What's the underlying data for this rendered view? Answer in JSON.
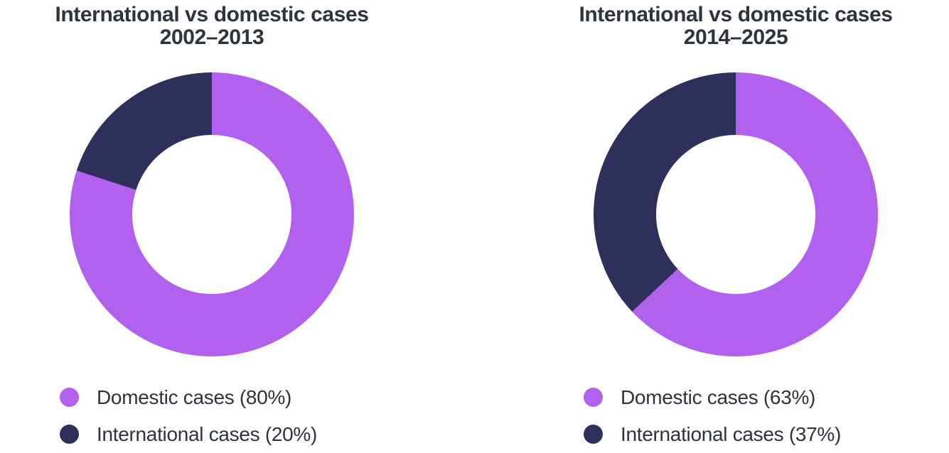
{
  "colors": {
    "domestic": "#B260EE",
    "international": "#2F2F5C",
    "text": "#2E3340",
    "background": "#FFFFFF"
  },
  "charts": [
    {
      "title_line1": "International vs domestic cases",
      "title_line2": "2002–2013",
      "slices": [
        {
          "name": "Domestic cases",
          "percent": 80,
          "label": "Domestic cases (80%)"
        },
        {
          "name": "International cases",
          "percent": 20,
          "label": "International cases (20%)"
        }
      ]
    },
    {
      "title_line1": "International vs domestic cases",
      "title_line2": "2014–2025",
      "slices": [
        {
          "name": "Domestic cases",
          "percent": 63,
          "label": "Domestic cases (63%)"
        },
        {
          "name": "International cases",
          "percent": 37,
          "label": "International cases (37%)"
        }
      ]
    }
  ],
  "chart_data": [
    {
      "type": "pie",
      "subtype": "donut",
      "title": "International vs domestic cases 2002–2013",
      "labels": [
        "Domestic cases",
        "International cases"
      ],
      "values": [
        80,
        20
      ],
      "unit": "%",
      "colors": [
        "#B260EE",
        "#2F2F5C"
      ],
      "hole_ratio": 0.56,
      "start_angle_deg": 0,
      "direction": "clockwise",
      "legend_position": "bottom-left"
    },
    {
      "type": "pie",
      "subtype": "donut",
      "title": "International vs domestic cases 2014–2025",
      "labels": [
        "Domestic cases",
        "International cases"
      ],
      "values": [
        63,
        37
      ],
      "unit": "%",
      "colors": [
        "#B260EE",
        "#2F2F5C"
      ],
      "hole_ratio": 0.56,
      "start_angle_deg": 0,
      "direction": "clockwise",
      "legend_position": "bottom-left"
    }
  ]
}
